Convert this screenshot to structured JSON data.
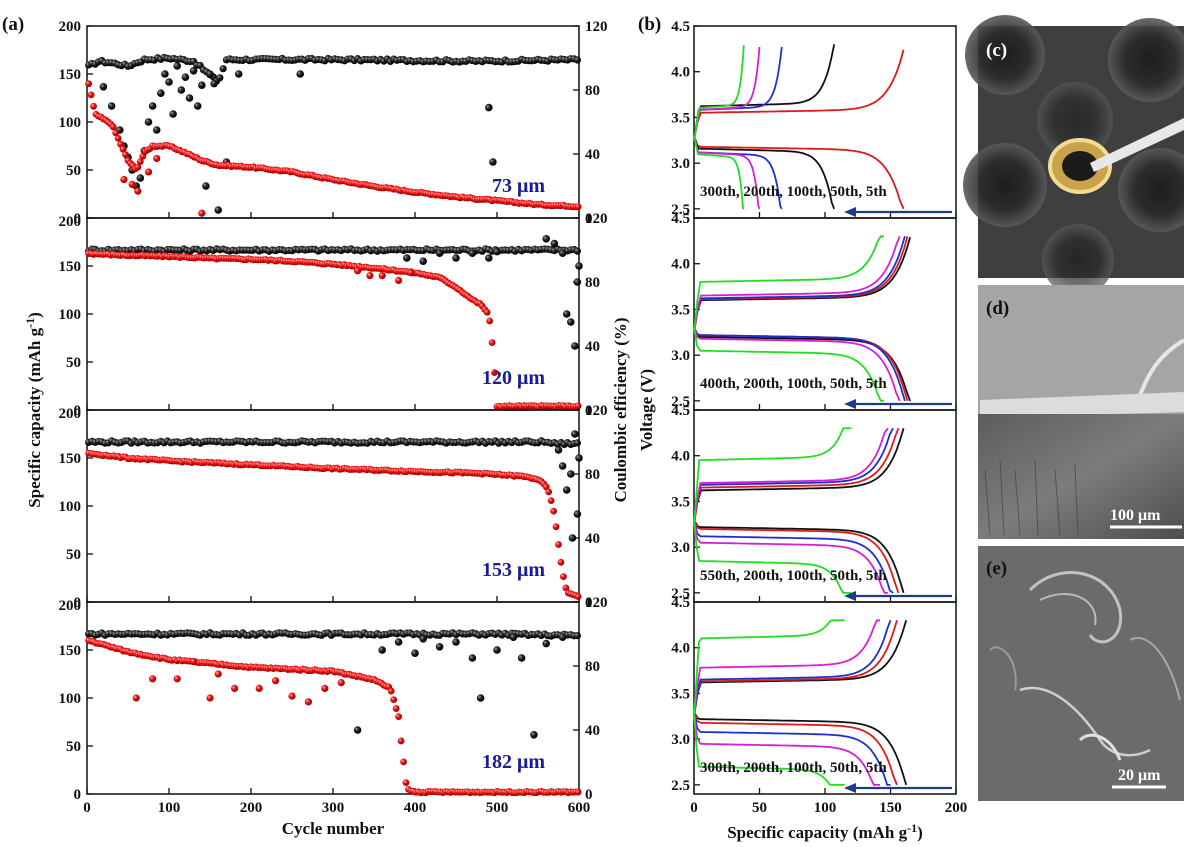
{
  "figure": {
    "panel_labels": [
      "(a)",
      "(b)",
      "(c)",
      "(d)",
      "(e)"
    ],
    "scale_bars": {
      "d": "100 μm",
      "e": "20 μm"
    }
  },
  "chart_data": [
    {
      "id": "a",
      "type": "scatter",
      "xlabel": "Cycle number",
      "ylabel_left": "Specific capacity (mAh g-1)",
      "ylabel_right": "Coulombic efficiency (%)",
      "xlim": [
        0,
        600
      ],
      "ylim_left": [
        0,
        200
      ],
      "ylim_right": [
        0,
        120
      ],
      "x_ticks": [
        "0",
        "100",
        "200",
        "300",
        "400",
        "500",
        "600"
      ],
      "y_ticks_left": [
        "0",
        "50",
        "100",
        "150",
        "200"
      ],
      "y_ticks_right": [
        "0",
        "40",
        "80",
        "120"
      ],
      "colors": {
        "efficiency": "#111111",
        "capacity": "#dd1a1a",
        "label": "#1b1b9a"
      },
      "subplots": [
        {
          "label": "73 μm",
          "capacity": [
            [
              2,
              140
            ],
            [
              10,
              108
            ],
            [
              30,
              98
            ],
            [
              50,
              60
            ],
            [
              60,
              50
            ],
            [
              70,
              68
            ],
            [
              80,
              75
            ],
            [
              100,
              75
            ],
            [
              120,
              68
            ],
            [
              140,
              60
            ],
            [
              160,
              55
            ],
            [
              200,
              53
            ],
            [
              250,
              48
            ],
            [
              300,
              40
            ],
            [
              350,
              33
            ],
            [
              400,
              27
            ],
            [
              450,
              22
            ],
            [
              500,
              18
            ],
            [
              550,
              14
            ],
            [
              600,
              12
            ]
          ],
          "capacity_outliers": [
            [
              45,
              40
            ],
            [
              55,
              35
            ],
            [
              62,
              28
            ],
            [
              75,
              48
            ],
            [
              85,
              62
            ],
            [
              140,
              5
            ]
          ],
          "efficiency": [
            [
              2,
              95
            ],
            [
              15,
              98
            ],
            [
              30,
              97
            ],
            [
              50,
              95
            ],
            [
              70,
              99
            ],
            [
              100,
              100
            ],
            [
              130,
              98
            ],
            [
              160,
              85
            ],
            [
              170,
              99
            ],
            [
              300,
              99
            ],
            [
              480,
              98
            ],
            [
              600,
              99
            ]
          ],
          "efficiency_outliers": [
            [
              20,
              82
            ],
            [
              30,
              70
            ],
            [
              40,
              55
            ],
            [
              45,
              45
            ],
            [
              50,
              38
            ],
            [
              55,
              30
            ],
            [
              60,
              20
            ],
            [
              65,
              25
            ],
            [
              70,
              42
            ],
            [
              75,
              60
            ],
            [
              80,
              70
            ],
            [
              85,
              55
            ],
            [
              90,
              78
            ],
            [
              95,
              90
            ],
            [
              100,
              85
            ],
            [
              105,
              65
            ],
            [
              110,
              95
            ],
            [
              115,
              80
            ],
            [
              120,
              88
            ],
            [
              125,
              75
            ],
            [
              130,
              92
            ],
            [
              135,
              70
            ],
            [
              140,
              83
            ],
            [
              145,
              20
            ],
            [
              150,
              90
            ],
            [
              155,
              84
            ],
            [
              160,
              5
            ],
            [
              170,
              35
            ],
            [
              185,
              90
            ],
            [
              260,
              90
            ],
            [
              490,
              69
            ],
            [
              495,
              35
            ]
          ]
        },
        {
          "label": "120 μm",
          "capacity": [
            [
              2,
              163
            ],
            [
              50,
              161
            ],
            [
              100,
              160
            ],
            [
              150,
              158
            ],
            [
              200,
              157
            ],
            [
              250,
              155
            ],
            [
              300,
              152
            ],
            [
              350,
              148
            ],
            [
              400,
              143
            ],
            [
              430,
              138
            ],
            [
              450,
              128
            ],
            [
              470,
              115
            ],
            [
              480,
              110
            ],
            [
              490,
              100
            ],
            [
              495,
              62
            ],
            [
              500,
              4
            ],
            [
              600,
              4
            ]
          ],
          "capacity_outliers": [
            [
              330,
              145
            ],
            [
              345,
              140
            ],
            [
              360,
              140
            ],
            [
              380,
              135
            ],
            [
              395,
              143
            ]
          ],
          "efficiency": [
            [
              2,
              100
            ],
            [
              100,
              100
            ],
            [
              200,
              100
            ],
            [
              300,
              100
            ],
            [
              400,
              100
            ],
            [
              500,
              100
            ],
            [
              560,
              100
            ],
            [
              575,
              100
            ]
          ],
          "efficiency_outliers": [
            [
              390,
              95
            ],
            [
              410,
              93
            ],
            [
              430,
              98
            ],
            [
              450,
              95
            ],
            [
              470,
              98
            ],
            [
              490,
              95
            ],
            [
              500,
              99
            ],
            [
              560,
              107
            ],
            [
              570,
              104
            ],
            [
              580,
              98
            ],
            [
              585,
              60
            ],
            [
              590,
              55
            ],
            [
              595,
              40
            ],
            [
              598,
              80
            ],
            [
              600,
              90
            ]
          ]
        },
        {
          "label": "153 μm",
          "capacity": [
            [
              2,
              155
            ],
            [
              50,
              150
            ],
            [
              100,
              147
            ],
            [
              200,
              143
            ],
            [
              300,
              139
            ],
            [
              400,
              136
            ],
            [
              480,
              134
            ],
            [
              530,
              131
            ],
            [
              550,
              128
            ],
            [
              560,
              120
            ],
            [
              565,
              110
            ],
            [
              570,
              90
            ],
            [
              575,
              60
            ],
            [
              580,
              30
            ],
            [
              585,
              10
            ],
            [
              600,
              6
            ]
          ],
          "capacity_outliers": [],
          "efficiency": [
            [
              2,
              100
            ],
            [
              100,
              100
            ],
            [
              200,
              100
            ],
            [
              300,
              100
            ],
            [
              400,
              100
            ],
            [
              500,
              100
            ],
            [
              560,
              100
            ],
            [
              570,
              99
            ]
          ],
          "efficiency_outliers": [
            [
              575,
              95
            ],
            [
              580,
              85
            ],
            [
              585,
              70
            ],
            [
              590,
              80
            ],
            [
              595,
              105
            ],
            [
              600,
              90
            ],
            [
              598,
              55
            ],
            [
              592,
              40
            ]
          ]
        },
        {
          "label": "182 μm",
          "capacity": [
            [
              2,
              160
            ],
            [
              50,
              148
            ],
            [
              100,
              140
            ],
            [
              150,
              136
            ],
            [
              200,
              132
            ],
            [
              250,
              130
            ],
            [
              300,
              128
            ],
            [
              350,
              119
            ],
            [
              370,
              110
            ],
            [
              380,
              80
            ],
            [
              385,
              40
            ],
            [
              390,
              5
            ],
            [
              400,
              2
            ],
            [
              600,
              2
            ]
          ],
          "capacity_outliers": [
            [
              60,
              100
            ],
            [
              80,
              120
            ],
            [
              110,
              120
            ],
            [
              130,
              138
            ],
            [
              150,
              100
            ],
            [
              160,
              125
            ],
            [
              180,
              110
            ],
            [
              210,
              110
            ],
            [
              230,
              118
            ],
            [
              250,
              102
            ],
            [
              270,
              96
            ],
            [
              290,
              110
            ],
            [
              310,
              116
            ]
          ],
          "efficiency": [
            [
              2,
              100
            ],
            [
              100,
              100
            ],
            [
              200,
              100
            ],
            [
              300,
              100
            ],
            [
              350,
              100
            ],
            [
              400,
              100
            ],
            [
              500,
              100
            ],
            [
              600,
              99
            ]
          ],
          "efficiency_outliers": [
            [
              330,
              40
            ],
            [
              360,
              90
            ],
            [
              380,
              95
            ],
            [
              400,
              88
            ],
            [
              410,
              97
            ],
            [
              430,
              92
            ],
            [
              450,
              95
            ],
            [
              470,
              85
            ],
            [
              480,
              60
            ],
            [
              500,
              90
            ],
            [
              520,
              98
            ],
            [
              530,
              85
            ],
            [
              545,
              37
            ],
            [
              560,
              94
            ],
            [
              580,
              98
            ]
          ]
        }
      ]
    },
    {
      "id": "b",
      "type": "line",
      "xlabel": "Specific capacity (mAh g-1)",
      "ylabel": "Voltage (V)",
      "xlim": [
        0,
        200
      ],
      "ylim": [
        2.4,
        4.5
      ],
      "x_ticks": [
        "0",
        "50",
        "100",
        "150",
        "200"
      ],
      "y_ticks": [
        "2.5",
        "3.0",
        "3.5",
        "4.0",
        "4.5"
      ],
      "subplots": [
        {
          "cycle_label": "300th, 200th, 100th, 50th, 5th",
          "curves": [
            {
              "color": "#dd1a1a",
              "cap": 160,
              "charge_v": 3.55,
              "discharge_v": 3.18
            },
            {
              "color": "#111111",
              "cap": 107,
              "charge_v": 3.62,
              "discharge_v": 3.16
            },
            {
              "color": "#1d2fd0",
              "cap": 67,
              "charge_v": 3.58,
              "discharge_v": 3.12
            },
            {
              "color": "#d51fd5",
              "cap": 50,
              "charge_v": 3.58,
              "discharge_v": 3.12
            },
            {
              "color": "#22dd22",
              "cap": 38,
              "charge_v": 3.6,
              "discharge_v": 3.1
            }
          ]
        },
        {
          "cycle_label": "400th, 200th, 100th, 50th, 5th",
          "curves": [
            {
              "color": "#111111",
              "cap": 165,
              "charge_v": 3.6,
              "discharge_v": 3.2
            },
            {
              "color": "#dd1a1a",
              "cap": 163,
              "charge_v": 3.61,
              "discharge_v": 3.22
            },
            {
              "color": "#1d2fd0",
              "cap": 161,
              "charge_v": 3.62,
              "discharge_v": 3.22
            },
            {
              "color": "#d51fd5",
              "cap": 157,
              "charge_v": 3.65,
              "discharge_v": 3.18
            },
            {
              "color": "#22dd22",
              "cap": 145,
              "charge_v": 3.8,
              "discharge_v": 3.05
            }
          ]
        },
        {
          "cycle_label": "550th, 200th, 100th, 50th, 5th",
          "curves": [
            {
              "color": "#111111",
              "cap": 160,
              "charge_v": 3.62,
              "discharge_v": 3.22
            },
            {
              "color": "#dd1a1a",
              "cap": 156,
              "charge_v": 3.65,
              "discharge_v": 3.2
            },
            {
              "color": "#1d2fd0",
              "cap": 152,
              "charge_v": 3.68,
              "discharge_v": 3.12
            },
            {
              "color": "#d51fd5",
              "cap": 148,
              "charge_v": 3.7,
              "discharge_v": 3.05
            },
            {
              "color": "#22dd22",
              "cap": 120,
              "charge_v": 3.95,
              "discharge_v": 2.85
            }
          ]
        },
        {
          "cycle_label": "300th, 200th, 100th, 50th, 5th",
          "curves": [
            {
              "color": "#111111",
              "cap": 162,
              "charge_v": 3.62,
              "discharge_v": 3.22
            },
            {
              "color": "#dd1a1a",
              "cap": 155,
              "charge_v": 3.63,
              "discharge_v": 3.18
            },
            {
              "color": "#1d2fd0",
              "cap": 150,
              "charge_v": 3.65,
              "discharge_v": 3.08
            },
            {
              "color": "#d51fd5",
              "cap": 142,
              "charge_v": 3.78,
              "discharge_v": 2.95
            },
            {
              "color": "#22dd22",
              "cap": 115,
              "charge_v": 4.1,
              "discharge_v": 2.7
            }
          ]
        }
      ]
    }
  ]
}
